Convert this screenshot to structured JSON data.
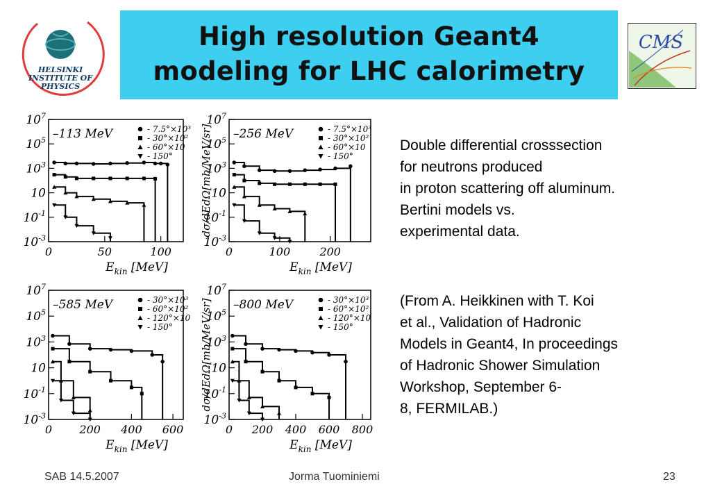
{
  "title": {
    "line1": "High resolution Geant4",
    "line2": "modeling for LHC calorimetry"
  },
  "logos": {
    "left": "HELSINKI INSTITUTE OF PHYSICS",
    "right": "CMS"
  },
  "description": {
    "para1": [
      "Double differential crosssection",
      "for neutrons produced",
      "in proton scattering off aluminum.",
      "Bertini models vs.",
      "experimental data."
    ],
    "para2": [
      "(From A. Heikkinen with T. Koi",
      "et al., Validation of Hadronic",
      "Models in Geant4, In proceedings",
      "of Hadronic Shower Simulation",
      "Workshop, September 6-",
      "8, FERMILAB.)"
    ]
  },
  "footer": {
    "left": "SAB 14.5.2007",
    "center": "Jorma Tuominiemi",
    "right": "23"
  },
  "chart_data": [
    {
      "type": "scatter",
      "title": "113 MeV",
      "xlabel": "E_kin [MeV]",
      "ylabel": "",
      "xlim": [
        0,
        120
      ],
      "xticks": [
        0,
        50,
        100
      ],
      "yscale": "log",
      "ylim": [
        0.001,
        10000000
      ],
      "yticks": [
        "10^7",
        "10^5",
        "10^3",
        "10",
        "10^-1",
        "10^-3"
      ],
      "yticks_clipped": [
        "10^7",
        "10^5",
        "10^3",
        "10",
        "10^-1",
        "10^-3"
      ],
      "legend": [
        {
          "marker": "circle",
          "label": "- 7.5°×10³"
        },
        {
          "marker": "square",
          "label": "- 30°×10²"
        },
        {
          "marker": "triangle",
          "label": "- 60°×10"
        },
        {
          "marker": "triangle-down",
          "label": "- 150°"
        }
      ],
      "series": [
        {
          "marker": "circle",
          "x": [
            5,
            15,
            25,
            40,
            55,
            70,
            85,
            95,
            100,
            106
          ],
          "y": [
            3000,
            2500,
            2500,
            2300,
            2500,
            2700,
            3000,
            2500,
            2500,
            2000
          ]
        },
        {
          "marker": "square",
          "x": [
            5,
            15,
            25,
            40,
            55,
            70,
            85,
            95
          ],
          "y": [
            300,
            200,
            150,
            150,
            150,
            150,
            150,
            140
          ]
        },
        {
          "marker": "triangle",
          "x": [
            5,
            15,
            25,
            40,
            55,
            70,
            85
          ],
          "y": [
            30,
            10,
            5,
            3,
            2,
            1.5,
            1
          ]
        },
        {
          "marker": "triangle-down",
          "x": [
            5,
            15,
            25,
            40,
            55
          ],
          "y": [
            1,
            0.1,
            0.02,
            0.005,
            0.002
          ]
        }
      ]
    },
    {
      "type": "scatter",
      "title": "256 MeV",
      "xlabel": "E_kin [MeV]",
      "ylabel": "dσ/dEdΩ[mb/MeV/sr]",
      "xlim": [
        0,
        280
      ],
      "xticks": [
        0,
        100,
        200
      ],
      "yscale": "log",
      "ylim": [
        0.001,
        10000000
      ],
      "yticks": [
        "10^7",
        "10^5",
        "10^3",
        "10",
        "10^-1",
        "10^-3"
      ],
      "legend": [
        {
          "marker": "circle",
          "label": "- 7.5°×10³"
        },
        {
          "marker": "square",
          "label": "- 30°×10²"
        },
        {
          "marker": "triangle",
          "label": "- 60°×10"
        },
        {
          "marker": "triangle-down",
          "label": "- 150°"
        }
      ],
      "series": [
        {
          "marker": "circle",
          "x": [
            10,
            30,
            60,
            90,
            120,
            150,
            180,
            210,
            240
          ],
          "y": [
            3000,
            1500,
            700,
            600,
            600,
            700,
            800,
            1000,
            1500
          ]
        },
        {
          "marker": "square",
          "x": [
            10,
            30,
            60,
            90,
            120,
            150,
            180,
            210
          ],
          "y": [
            300,
            100,
            60,
            50,
            50,
            50,
            50,
            50
          ]
        },
        {
          "marker": "triangle",
          "x": [
            10,
            30,
            60,
            90,
            120,
            150
          ],
          "y": [
            30,
            5,
            1,
            0.5,
            0.3,
            0.2
          ]
        },
        {
          "marker": "triangle-down",
          "x": [
            10,
            30,
            60,
            90,
            120
          ],
          "y": [
            1,
            0.05,
            0.005,
            0.002,
            0.001
          ]
        }
      ]
    },
    {
      "type": "scatter",
      "title": "585 MeV",
      "xlabel": "E_kin [MeV]",
      "ylabel": "",
      "xlim": [
        0,
        650
      ],
      "xticks": [
        0,
        200,
        400,
        600
      ],
      "yscale": "log",
      "ylim": [
        0.001,
        10000000
      ],
      "yticks": [
        "10^7",
        "10^5",
        "10^3",
        "10",
        "10^-1",
        "10^-3"
      ],
      "legend": [
        {
          "marker": "circle",
          "label": "- 30°×10³"
        },
        {
          "marker": "square",
          "label": "- 60°×10²"
        },
        {
          "marker": "triangle",
          "label": "- 120°×10"
        },
        {
          "marker": "triangle-down",
          "label": "- 150°"
        }
      ],
      "series": [
        {
          "marker": "circle",
          "x": [
            20,
            100,
            200,
            300,
            400,
            500,
            550
          ],
          "y": [
            3000,
            700,
            300,
            250,
            200,
            100,
            30
          ]
        },
        {
          "marker": "square",
          "x": [
            20,
            100,
            200,
            300,
            400,
            450
          ],
          "y": [
            300,
            30,
            5,
            1,
            0.3,
            0.1
          ]
        },
        {
          "marker": "triangle",
          "x": [
            20,
            60,
            120,
            200
          ],
          "y": [
            30,
            1,
            0.05,
            0.005
          ]
        },
        {
          "marker": "triangle-down",
          "x": [
            20,
            60,
            120,
            200
          ],
          "y": [
            1,
            0.03,
            0.003,
            0.001
          ]
        }
      ]
    },
    {
      "type": "scatter",
      "title": "800 MeV",
      "xlabel": "E_kin [MeV]",
      "ylabel": "dσ/dEdΩ[mb/MeV/sr]",
      "xlim": [
        0,
        850
      ],
      "xticks": [
        0,
        200,
        400,
        600,
        800
      ],
      "yscale": "log",
      "ylim": [
        0.001,
        10000000
      ],
      "yticks": [
        "10^7",
        "10^5",
        "10^3",
        "10",
        "10^-1",
        "10^-3"
      ],
      "legend": [
        {
          "marker": "circle",
          "label": "- 30°×10³"
        },
        {
          "marker": "square",
          "label": "- 60°×10²"
        },
        {
          "marker": "triangle",
          "label": "- 120°×10"
        },
        {
          "marker": "triangle-down",
          "label": "- 150°"
        }
      ],
      "series": [
        {
          "marker": "circle",
          "x": [
            20,
            100,
            200,
            300,
            400,
            500,
            600,
            700
          ],
          "y": [
            3000,
            700,
            300,
            250,
            200,
            150,
            100,
            30
          ]
        },
        {
          "marker": "square",
          "x": [
            20,
            100,
            200,
            300,
            400,
            500,
            600
          ],
          "y": [
            300,
            30,
            5,
            1,
            0.3,
            0.1,
            0.05
          ]
        },
        {
          "marker": "triangle",
          "x": [
            20,
            60,
            120,
            200,
            300
          ],
          "y": [
            30,
            1,
            0.05,
            0.01,
            0.003
          ]
        },
        {
          "marker": "triangle-down",
          "x": [
            20,
            60,
            120,
            200
          ],
          "y": [
            1,
            0.03,
            0.003,
            0.001
          ]
        }
      ]
    }
  ],
  "colors": {
    "title_bg": "#3ecff0",
    "hip_ring": "#e03a3a",
    "hip_globe": "#1f6f7a",
    "cms_green": "#8fc67a",
    "cms_blue": "#2b4aa8"
  }
}
